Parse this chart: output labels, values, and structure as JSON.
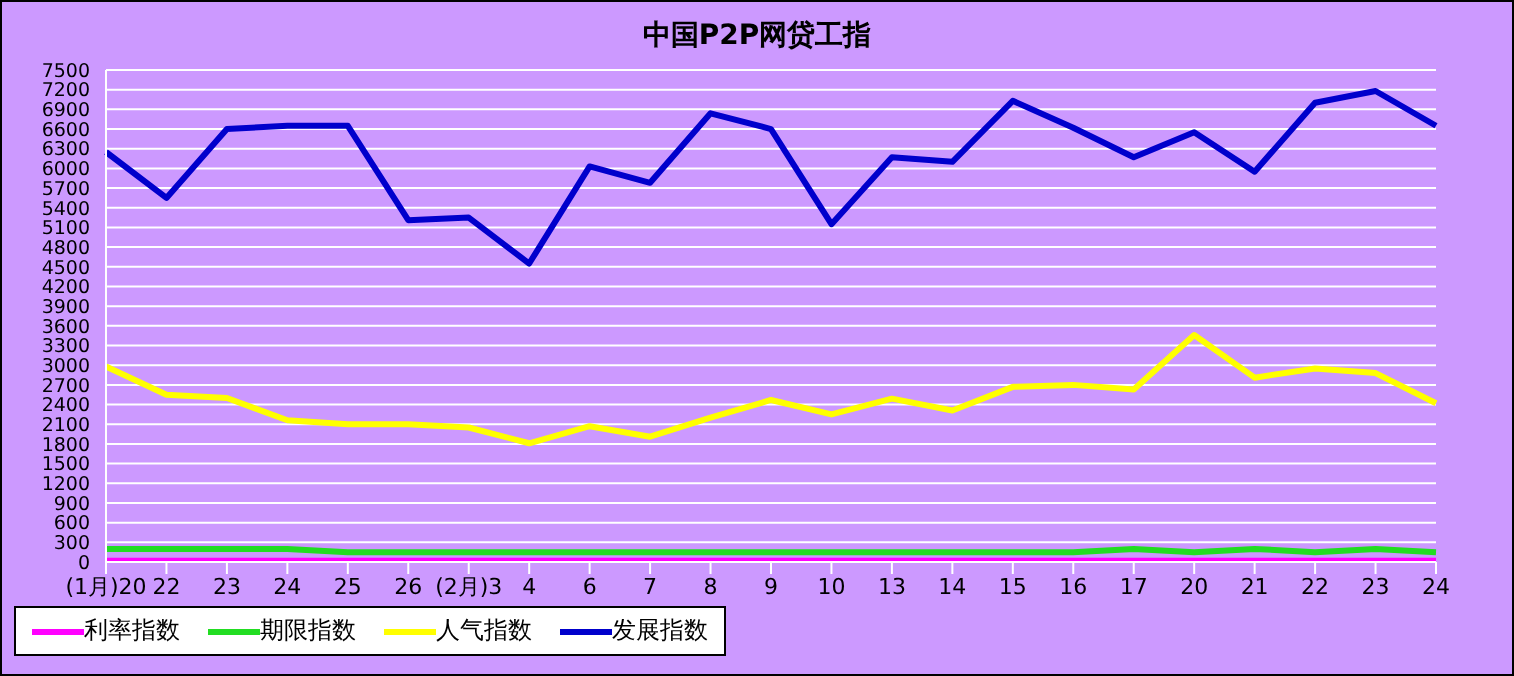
{
  "chart_data": {
    "type": "line",
    "title": "中国P2P网贷工指",
    "categories": [
      "(1月)20",
      "22",
      "23",
      "24",
      "25",
      "26",
      "(2月)3",
      "4",
      "6",
      "7",
      "8",
      "9",
      "10",
      "13",
      "14",
      "15",
      "16",
      "17",
      "20",
      "21",
      "22",
      "23",
      "24"
    ],
    "series": [
      {
        "name": "利率指数",
        "color": "#ff00ff",
        "values": [
          20,
          20,
          20,
          20,
          20,
          20,
          20,
          20,
          20,
          20,
          20,
          20,
          20,
          20,
          20,
          20,
          20,
          20,
          20,
          20,
          20,
          20,
          20
        ]
      },
      {
        "name": "期限指数",
        "color": "#22dd22",
        "values": [
          200,
          200,
          200,
          200,
          150,
          150,
          150,
          150,
          150,
          150,
          150,
          150,
          150,
          150,
          150,
          150,
          150,
          200,
          150,
          200,
          150,
          200,
          150
        ]
      },
      {
        "name": "人气指数",
        "color": "#ffff00",
        "values": [
          2980,
          2550,
          2500,
          2160,
          2100,
          2100,
          2050,
          1810,
          2070,
          1910,
          2200,
          2470,
          2250,
          2490,
          2310,
          2670,
          2700,
          2630,
          3460,
          2810,
          2950,
          2880,
          2420
        ]
      },
      {
        "name": "发展指数",
        "color": "#0000cc",
        "values": [
          6250,
          5550,
          6600,
          6650,
          6650,
          5210,
          5250,
          4550,
          6030,
          5780,
          6840,
          6600,
          5150,
          6170,
          6100,
          7030,
          6620,
          6170,
          6550,
          5950,
          7000,
          7180,
          6650
        ]
      }
    ],
    "ylim": [
      0,
      7500
    ],
    "yticks": [
      0,
      300,
      600,
      900,
      1200,
      1500,
      1800,
      2100,
      2400,
      2700,
      3000,
      3300,
      3600,
      3900,
      4200,
      4500,
      4800,
      5100,
      5400,
      5700,
      6000,
      6300,
      6600,
      6900,
      7200,
      7500
    ],
    "grid": "y",
    "legend": "bottom left",
    "marker": "none",
    "line_style": "solid"
  }
}
